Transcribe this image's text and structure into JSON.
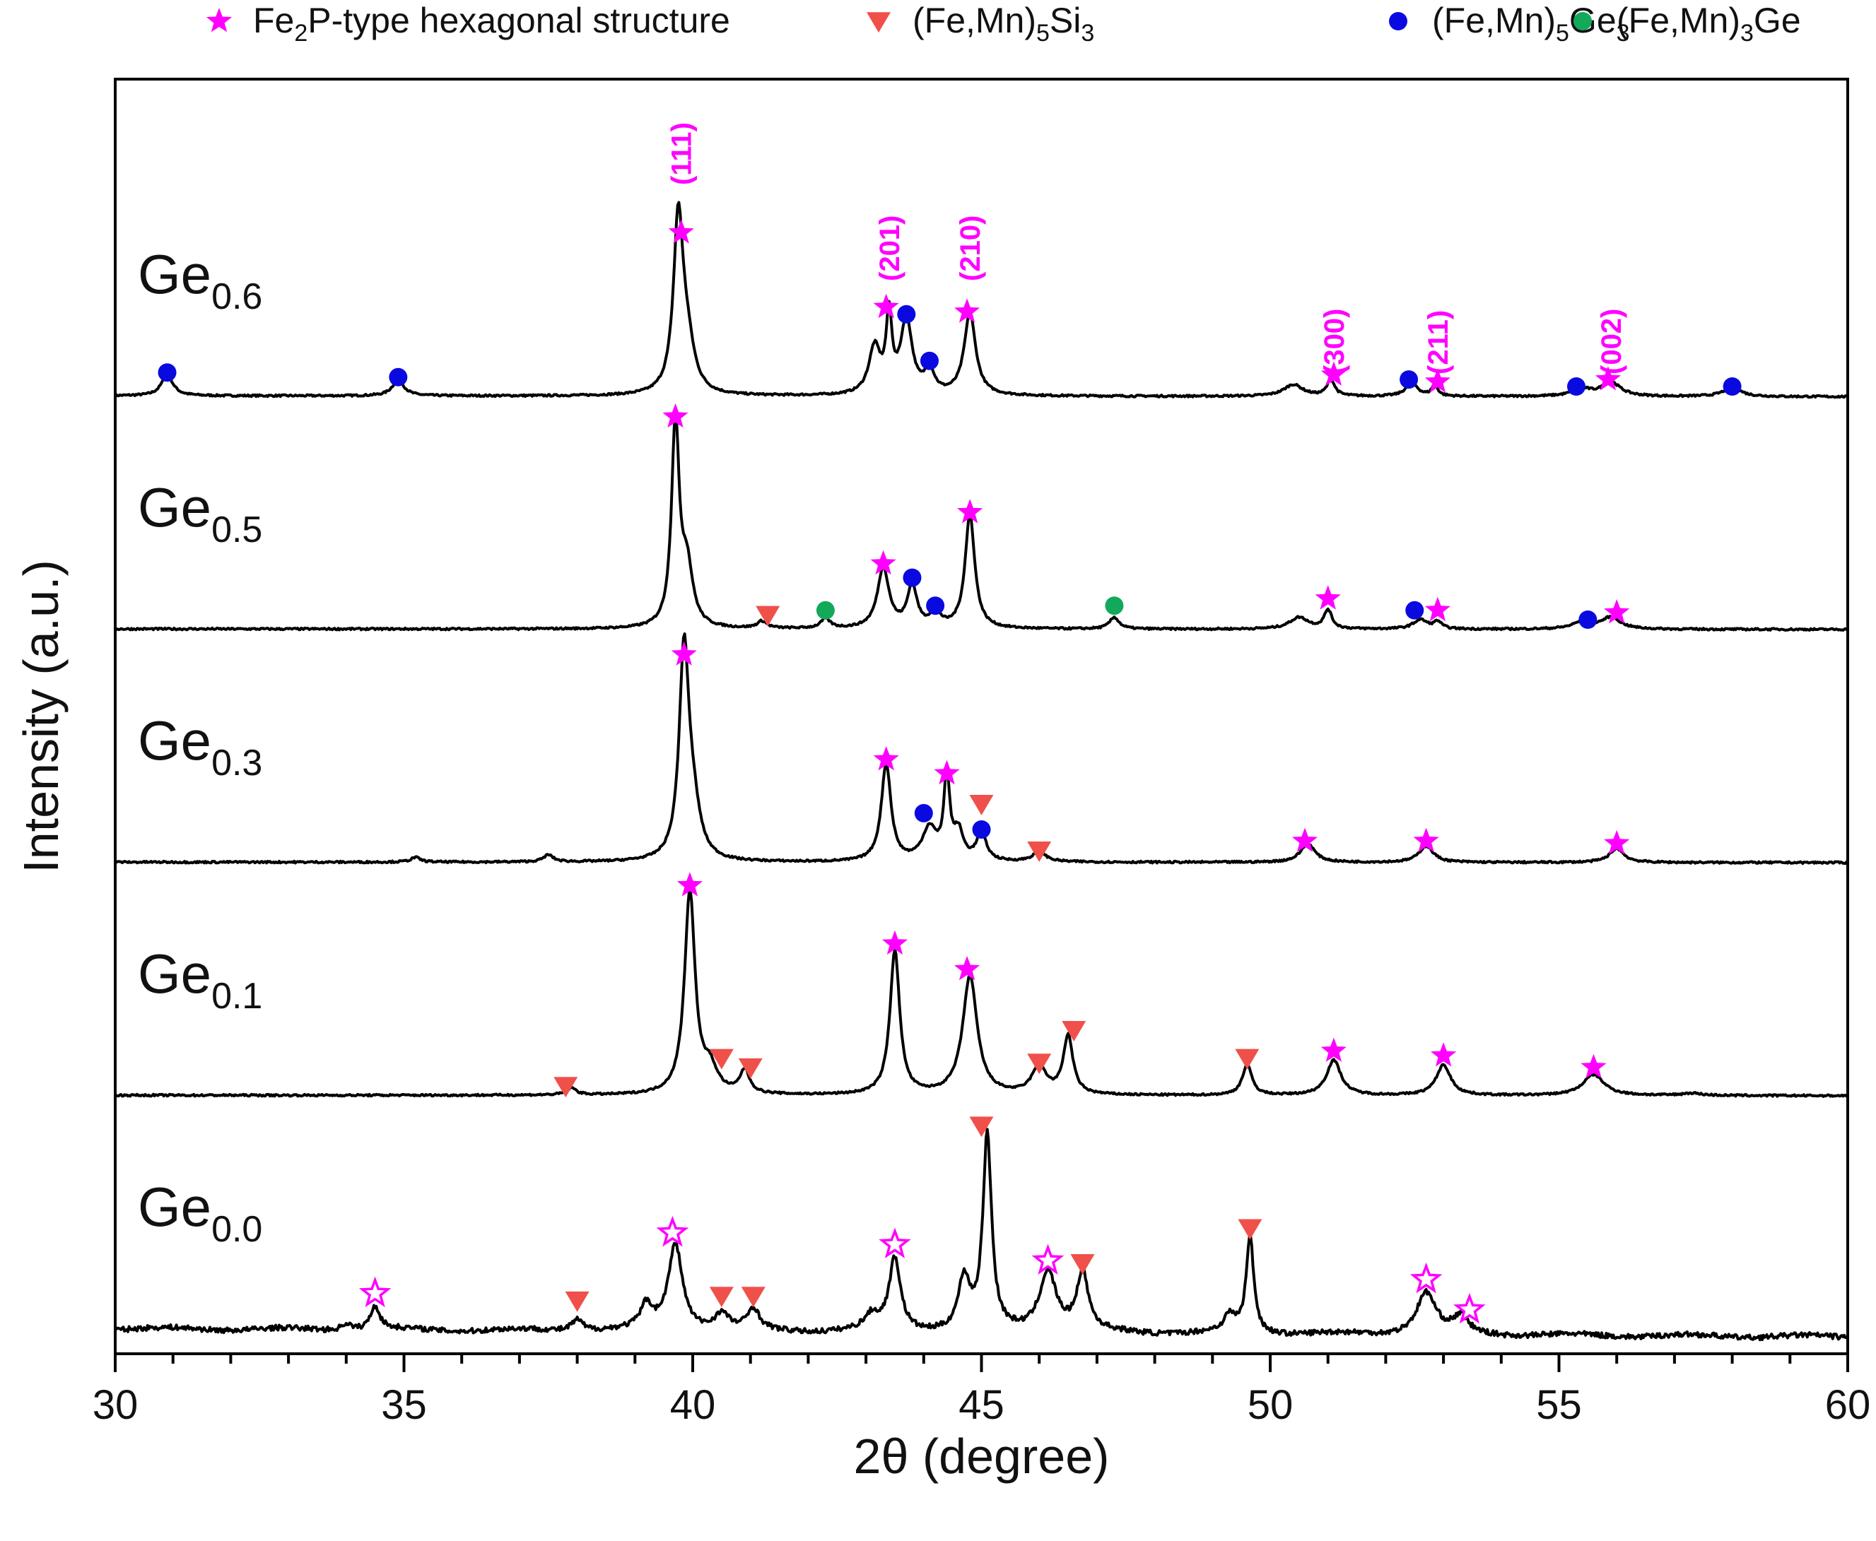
{
  "chart_data": {
    "type": "line",
    "xlabel": "2θ (degree)",
    "ylabel": "Intensity (a.u.)",
    "xlim": [
      30,
      60
    ],
    "x_ticks": [
      "30",
      "35",
      "40",
      "45",
      "50",
      "55",
      "60"
    ],
    "legend_position": "top",
    "legend": [
      {
        "marker": "star",
        "color": "#ff00ff",
        "parts": [
          [
            "Fe",
            ""
          ],
          [
            "2",
            "sub"
          ],
          [
            "P-type hexagonal structure",
            ""
          ]
        ]
      },
      {
        "marker": "triangle-down",
        "color": "#f0504a",
        "parts": [
          [
            "(Fe,Mn)",
            ""
          ],
          [
            "5",
            "sub"
          ],
          [
            "Si",
            ""
          ],
          [
            "3",
            "sub"
          ]
        ]
      },
      {
        "marker": "circle",
        "color": "#0a0ae0",
        "parts": [
          [
            "(Fe,Mn)",
            ""
          ],
          [
            "5",
            "sub"
          ],
          [
            "Ge",
            ""
          ],
          [
            "3",
            "sub"
          ]
        ]
      },
      {
        "marker": "circle",
        "color": "#13a95a",
        "parts": [
          [
            "(Fe,Mn)",
            ""
          ],
          [
            "3",
            "sub"
          ],
          [
            "Ge",
            ""
          ]
        ]
      }
    ],
    "hkl_labels": [
      {
        "text": "(111)",
        "x": 39.8
      },
      {
        "text": "(201)",
        "x": 43.4
      },
      {
        "text": "(210)",
        "x": 44.8
      },
      {
        "text": "(300)",
        "x": 51.1
      },
      {
        "text": "(211)",
        "x": 52.9
      },
      {
        "text": "(002)",
        "x": 55.9
      }
    ],
    "series": [
      {
        "name": "Ge0.6",
        "label_main": "Ge",
        "label_sub": "0.6",
        "offset": 4.0,
        "peaks": [
          [
            30.9,
            0.09,
            0.12
          ],
          [
            34.9,
            0.07,
            0.12
          ],
          [
            39.75,
            0.73,
            0.1
          ],
          [
            39.9,
            0.2,
            0.15
          ],
          [
            43.15,
            0.2,
            0.12
          ],
          [
            43.4,
            0.32,
            0.06
          ],
          [
            43.7,
            0.32,
            0.12
          ],
          [
            44.1,
            0.1,
            0.1
          ],
          [
            44.8,
            0.35,
            0.12
          ],
          [
            50.4,
            0.05,
            0.2
          ],
          [
            51.05,
            0.07,
            0.08
          ],
          [
            52.45,
            0.06,
            0.12
          ],
          [
            52.85,
            0.05,
            0.06
          ],
          [
            55.4,
            0.03,
            0.2
          ],
          [
            55.9,
            0.06,
            0.2
          ],
          [
            58.0,
            0.04,
            0.18
          ]
        ],
        "markers": [
          {
            "type": "circle",
            "color": "#0a0ae0",
            "x": 30.9,
            "y": 0.16
          },
          {
            "type": "circle",
            "color": "#0a0ae0",
            "x": 34.9,
            "y": 0.14
          },
          {
            "type": "star",
            "color": "#ff00ff",
            "x": 39.8,
            "y": 0.76
          },
          {
            "type": "star",
            "color": "#ff00ff",
            "x": 43.35,
            "y": 0.44
          },
          {
            "type": "circle",
            "color": "#0a0ae0",
            "x": 43.7,
            "y": 0.41
          },
          {
            "type": "circle",
            "color": "#0a0ae0",
            "x": 44.1,
            "y": 0.21
          },
          {
            "type": "star",
            "color": "#ff00ff",
            "x": 44.75,
            "y": 0.42
          },
          {
            "type": "star",
            "color": "#ff00ff",
            "x": 51.1,
            "y": 0.15
          },
          {
            "type": "circle",
            "color": "#0a0ae0",
            "x": 52.4,
            "y": 0.13
          },
          {
            "type": "star",
            "color": "#ff00ff",
            "x": 52.9,
            "y": 0.12
          },
          {
            "type": "circle",
            "color": "#0a0ae0",
            "x": 55.3,
            "y": 0.1
          },
          {
            "type": "star",
            "color": "#ff00ff",
            "x": 55.85,
            "y": 0.13
          },
          {
            "type": "circle",
            "color": "#0a0ae0",
            "x": 58.0,
            "y": 0.1
          }
        ]
      },
      {
        "name": "Ge0.5",
        "label_main": "Ge",
        "label_sub": "0.5",
        "offset": 3.0,
        "peaks": [
          [
            39.7,
            0.87,
            0.08
          ],
          [
            39.9,
            0.25,
            0.12
          ],
          [
            41.2,
            0.03,
            0.1
          ],
          [
            42.3,
            0.04,
            0.1
          ],
          [
            43.3,
            0.26,
            0.12
          ],
          [
            43.8,
            0.18,
            0.1
          ],
          [
            44.2,
            0.07,
            0.1
          ],
          [
            44.8,
            0.49,
            0.1
          ],
          [
            47.3,
            0.05,
            0.1
          ],
          [
            50.5,
            0.05,
            0.2
          ],
          [
            51.0,
            0.08,
            0.08
          ],
          [
            52.6,
            0.04,
            0.15
          ],
          [
            52.9,
            0.03,
            0.08
          ],
          [
            55.4,
            0.03,
            0.2
          ],
          [
            55.9,
            0.05,
            0.2
          ]
        ],
        "markers": [
          {
            "type": "star",
            "color": "#ff00ff",
            "x": 39.7,
            "y": 0.97
          },
          {
            "type": "triangle-down",
            "color": "#f0504a",
            "x": 41.3,
            "y": 0.12
          },
          {
            "type": "circle",
            "color": "#13a95a",
            "x": 42.3,
            "y": 0.14
          },
          {
            "type": "star",
            "color": "#ff00ff",
            "x": 43.3,
            "y": 0.34
          },
          {
            "type": "circle",
            "color": "#0a0ae0",
            "x": 43.8,
            "y": 0.28
          },
          {
            "type": "circle",
            "color": "#0a0ae0",
            "x": 44.2,
            "y": 0.16
          },
          {
            "type": "star",
            "color": "#ff00ff",
            "x": 44.8,
            "y": 0.56
          },
          {
            "type": "circle",
            "color": "#13a95a",
            "x": 47.3,
            "y": 0.16
          },
          {
            "type": "star",
            "color": "#ff00ff",
            "x": 51.0,
            "y": 0.19
          },
          {
            "type": "circle",
            "color": "#0a0ae0",
            "x": 52.5,
            "y": 0.14
          },
          {
            "type": "star",
            "color": "#ff00ff",
            "x": 52.9,
            "y": 0.14
          },
          {
            "type": "circle",
            "color": "#0a0ae0",
            "x": 55.5,
            "y": 0.1
          },
          {
            "type": "star",
            "color": "#ff00ff",
            "x": 56.0,
            "y": 0.13
          }
        ]
      },
      {
        "name": "Ge0.3",
        "label_main": "Ge",
        "label_sub": "0.3",
        "offset": 2.0,
        "peaks": [
          [
            35.2,
            0.02,
            0.1
          ],
          [
            37.5,
            0.03,
            0.1
          ],
          [
            39.85,
            0.88,
            0.1
          ],
          [
            40.0,
            0.2,
            0.15
          ],
          [
            43.35,
            0.42,
            0.1
          ],
          [
            44.1,
            0.14,
            0.15
          ],
          [
            44.4,
            0.36,
            0.06
          ],
          [
            44.6,
            0.12,
            0.1
          ],
          [
            45.0,
            0.12,
            0.1
          ],
          [
            46.0,
            0.04,
            0.15
          ],
          [
            50.65,
            0.08,
            0.15
          ],
          [
            52.7,
            0.07,
            0.15
          ],
          [
            56.0,
            0.06,
            0.15
          ]
        ],
        "markers": [
          {
            "type": "star",
            "color": "#ff00ff",
            "x": 39.85,
            "y": 0.95
          },
          {
            "type": "star",
            "color": "#ff00ff",
            "x": 43.35,
            "y": 0.5
          },
          {
            "type": "circle",
            "color": "#0a0ae0",
            "x": 44.0,
            "y": 0.27
          },
          {
            "type": "star",
            "color": "#ff00ff",
            "x": 44.4,
            "y": 0.44
          },
          {
            "type": "triangle-down",
            "color": "#f0504a",
            "x": 45.0,
            "y": 0.31
          },
          {
            "type": "circle",
            "color": "#0a0ae0",
            "x": 45.0,
            "y": 0.2
          },
          {
            "type": "triangle-down",
            "color": "#f0504a",
            "x": 46.0,
            "y": 0.11
          },
          {
            "type": "star",
            "color": "#ff00ff",
            "x": 50.6,
            "y": 0.15
          },
          {
            "type": "star",
            "color": "#ff00ff",
            "x": 52.7,
            "y": 0.15
          },
          {
            "type": "star",
            "color": "#ff00ff",
            "x": 56.0,
            "y": 0.14
          }
        ]
      },
      {
        "name": "Ge0.1",
        "label_main": "Ge",
        "label_sub": "0.1",
        "offset": 1.0,
        "peaks": [
          [
            37.9,
            0.03,
            0.1
          ],
          [
            39.95,
            0.87,
            0.11
          ],
          [
            40.3,
            0.1,
            0.15
          ],
          [
            40.9,
            0.1,
            0.1
          ],
          [
            43.5,
            0.62,
            0.1
          ],
          [
            44.8,
            0.51,
            0.15
          ],
          [
            46.0,
            0.12,
            0.15
          ],
          [
            46.5,
            0.25,
            0.1
          ],
          [
            49.6,
            0.13,
            0.1
          ],
          [
            51.1,
            0.15,
            0.15
          ],
          [
            53.0,
            0.13,
            0.15
          ],
          [
            55.6,
            0.09,
            0.22
          ],
          [
            57.3,
            0.01,
            0.2
          ]
        ],
        "markers": [
          {
            "type": "star",
            "color": "#ff00ff",
            "x": 39.95,
            "y": 0.96
          },
          {
            "type": "triangle-down",
            "color": "#f0504a",
            "x": 37.8,
            "y": 0.1
          },
          {
            "type": "triangle-down",
            "color": "#f0504a",
            "x": 40.5,
            "y": 0.22
          },
          {
            "type": "triangle-down",
            "color": "#f0504a",
            "x": 41.0,
            "y": 0.18
          },
          {
            "type": "star",
            "color": "#ff00ff",
            "x": 43.5,
            "y": 0.71
          },
          {
            "type": "star",
            "color": "#ff00ff",
            "x": 44.75,
            "y": 0.6
          },
          {
            "type": "triangle-down",
            "color": "#f0504a",
            "x": 46.0,
            "y": 0.2
          },
          {
            "type": "triangle-down",
            "color": "#f0504a",
            "x": 46.6,
            "y": 0.34
          },
          {
            "type": "triangle-down",
            "color": "#f0504a",
            "x": 49.6,
            "y": 0.22
          },
          {
            "type": "star",
            "color": "#ff00ff",
            "x": 51.1,
            "y": 0.25
          },
          {
            "type": "star",
            "color": "#ff00ff",
            "x": 53.0,
            "y": 0.23
          },
          {
            "type": "star",
            "color": "#ff00ff",
            "x": 55.6,
            "y": 0.18
          }
        ]
      },
      {
        "name": "Ge0.0",
        "label_main": "Ge",
        "label_sub": "0.0",
        "offset": 0.0,
        "peaks": [
          [
            34.0,
            0.03,
            0.1
          ],
          [
            34.5,
            0.1,
            0.1
          ],
          [
            38.0,
            0.05,
            0.12
          ],
          [
            39.2,
            0.1,
            0.12
          ],
          [
            39.7,
            0.37,
            0.15
          ],
          [
            40.5,
            0.07,
            0.15
          ],
          [
            41.05,
            0.09,
            0.12
          ],
          [
            43.1,
            0.06,
            0.15
          ],
          [
            43.5,
            0.31,
            0.12
          ],
          [
            44.7,
            0.22,
            0.12
          ],
          [
            45.1,
            0.83,
            0.09
          ],
          [
            46.15,
            0.26,
            0.18
          ],
          [
            46.75,
            0.25,
            0.12
          ],
          [
            49.3,
            0.07,
            0.12
          ],
          [
            49.65,
            0.41,
            0.08
          ],
          [
            52.7,
            0.18,
            0.2
          ],
          [
            53.3,
            0.07,
            0.15
          ]
        ],
        "markers": [
          {
            "type": "star-open",
            "color": "#ff00ff",
            "x": 34.5,
            "y": 0.21
          },
          {
            "type": "triangle-down",
            "color": "#f0504a",
            "x": 38.0,
            "y": 0.18
          },
          {
            "type": "star-open",
            "color": "#ff00ff",
            "x": 39.65,
            "y": 0.47
          },
          {
            "type": "triangle-down",
            "color": "#f0504a",
            "x": 40.5,
            "y": 0.2
          },
          {
            "type": "triangle-down",
            "color": "#f0504a",
            "x": 41.05,
            "y": 0.2
          },
          {
            "type": "star-open",
            "color": "#ff00ff",
            "x": 43.5,
            "y": 0.42
          },
          {
            "type": "triangle-down",
            "color": "#f0504a",
            "x": 45.0,
            "y": 0.93
          },
          {
            "type": "star-open",
            "color": "#ff00ff",
            "x": 46.15,
            "y": 0.35
          },
          {
            "type": "triangle-down",
            "color": "#f0504a",
            "x": 46.75,
            "y": 0.34
          },
          {
            "type": "triangle-down",
            "color": "#f0504a",
            "x": 49.65,
            "y": 0.49
          },
          {
            "type": "star-open",
            "color": "#ff00ff",
            "x": 52.7,
            "y": 0.27
          },
          {
            "type": "star-open",
            "color": "#ff00ff",
            "x": 53.45,
            "y": 0.14
          }
        ]
      }
    ]
  }
}
